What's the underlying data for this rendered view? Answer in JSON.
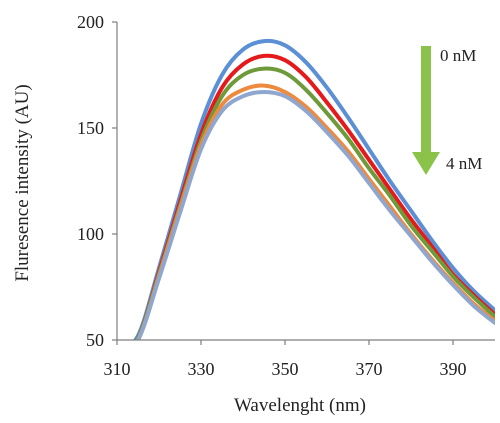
{
  "chart_data": {
    "type": "line",
    "xlabel": "Wavelenght  (nm)",
    "ylabel": "Fluresence  intensity  (AU)",
    "xlim": [
      310,
      400
    ],
    "ylim": [
      50,
      200
    ],
    "x_ticks": [
      310,
      330,
      350,
      370,
      390
    ],
    "y_ticks": [
      50,
      100,
      150,
      200
    ],
    "grid": false,
    "legend": "none",
    "x": [
      310,
      315,
      320,
      325,
      330,
      335,
      340,
      345,
      350,
      355,
      360,
      365,
      370,
      375,
      380,
      385,
      390,
      395,
      400
    ],
    "series": [
      {
        "color": "#5b8fd6",
        "values": [
          45,
          52,
          84,
          118,
          152,
          175,
          187,
          191,
          189,
          181,
          169,
          155,
          140,
          125,
          111,
          97,
          84,
          73,
          64
        ]
      },
      {
        "color": "#e41a1c",
        "values": [
          44,
          51,
          82,
          115,
          147,
          169,
          180,
          184,
          182,
          174,
          162,
          149,
          135,
          121,
          107,
          94,
          81,
          71,
          62
        ]
      },
      {
        "color": "#6e9a3a",
        "values": [
          44,
          51,
          81,
          113,
          144,
          165,
          175,
          178,
          176,
          168,
          157,
          145,
          131,
          118,
          104,
          92,
          80,
          70,
          61
        ]
      },
      {
        "color": "#ed8a3e",
        "values": [
          43,
          50,
          80,
          112,
          142,
          161,
          168,
          170,
          167,
          160,
          150,
          139,
          126,
          113,
          100,
          88,
          77,
          67,
          59
        ]
      },
      {
        "color": "#8fa6cf",
        "values": [
          43,
          50,
          79,
          110,
          140,
          158,
          165,
          167,
          165,
          158,
          148,
          137,
          124,
          111,
          99,
          87,
          76,
          66,
          58
        ]
      }
    ],
    "annotations": {
      "top": "0 nM",
      "bottom": "4 nM"
    },
    "arrow_color": "#8bc34a"
  }
}
